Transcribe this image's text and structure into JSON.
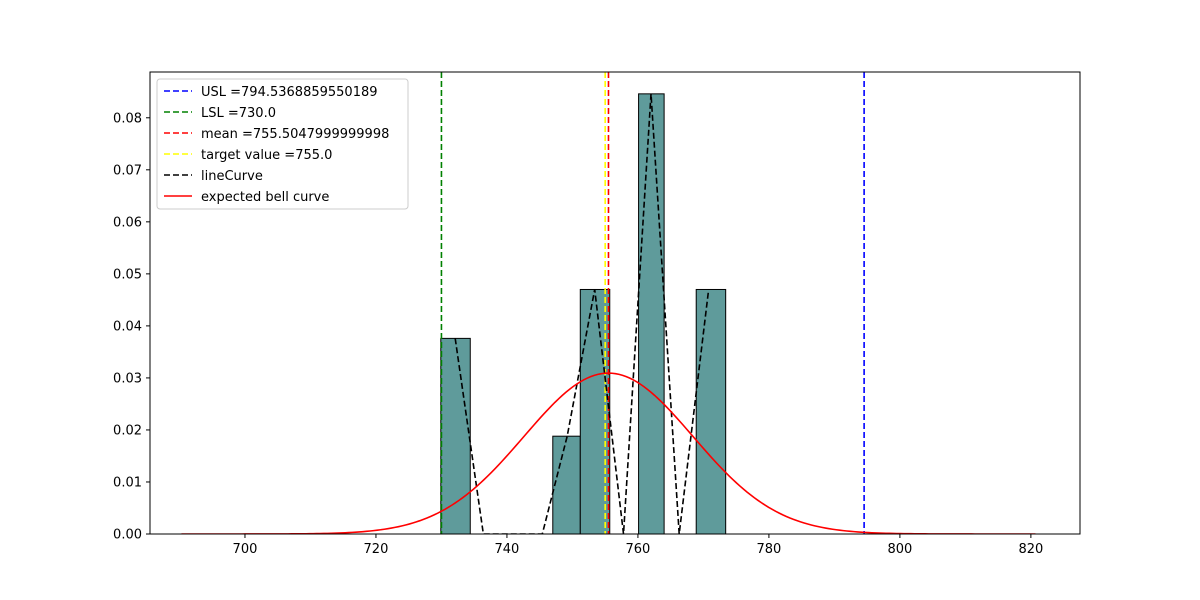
{
  "chart_data": {
    "type": "bar",
    "title": "",
    "xlabel": "",
    "ylabel": "",
    "xlim": [
      685.5,
      827.5
    ],
    "ylim": [
      0,
      0.0888
    ],
    "xticks": [
      700,
      720,
      740,
      760,
      780,
      800,
      820
    ],
    "xtick_labels": [
      "700",
      "720",
      "740",
      "760",
      "780",
      "800",
      "820"
    ],
    "yticks": [
      0.0,
      0.01,
      0.02,
      0.03,
      0.04,
      0.05,
      0.06,
      0.07,
      0.08
    ],
    "ytick_labels": [
      "0.00",
      "0.01",
      "0.02",
      "0.03",
      "0.04",
      "0.05",
      "0.06",
      "0.07",
      "0.08"
    ],
    "grid": false,
    "legend_position": "top-left",
    "histogram": {
      "bins": [
        {
          "x0": 729.9,
          "x1": 734.4,
          "value": 0.0376
        },
        {
          "x0": 734.4,
          "x1": 738.9,
          "value": 0.0
        },
        {
          "x0": 738.9,
          "x1": 743.4,
          "value": 0.0
        },
        {
          "x0": 743.4,
          "x1": 747.0,
          "value": 0.0
        },
        {
          "x0": 747.0,
          "x1": 751.2,
          "value": 0.0188
        },
        {
          "x0": 751.2,
          "x1": 755.7,
          "value": 0.047
        },
        {
          "x0": 755.7,
          "x1": 760.1,
          "value": 0.0
        },
        {
          "x0": 760.1,
          "x1": 764.0,
          "value": 0.0846
        },
        {
          "x0": 764.0,
          "x1": 768.9,
          "value": 0.0
        },
        {
          "x0": 768.9,
          "x1": 773.4,
          "value": 0.047
        }
      ],
      "color": "#5f9b9b"
    },
    "vertical_lines": [
      {
        "label": "USL =794.5368859550189",
        "x": 794.5368859550189,
        "color": "#0000ff",
        "style": "dashed"
      },
      {
        "label": "LSL =730.0",
        "x": 730.0,
        "color": "#008000",
        "style": "dashed"
      },
      {
        "label": "mean =755.5047999999998",
        "x": 755.5047999999998,
        "color": "#ff0000",
        "style": "dashed"
      },
      {
        "label": "target value =755.0",
        "x": 755.0,
        "color": "#ffff00",
        "style": "dashed"
      }
    ],
    "series": [
      {
        "name": "lineCurve",
        "color": "#000000",
        "style": "dashed",
        "x": [
          732.1,
          736.4,
          738.9,
          741.2,
          745.4,
          749.2,
          753.4,
          757.8,
          762.0,
          766.3,
          770.8
        ],
        "y": [
          0.0376,
          0.0,
          0.0,
          0.0,
          0.0,
          0.0188,
          0.047,
          0.0,
          0.0846,
          0.0,
          0.047
        ]
      },
      {
        "name": "expected bell curve",
        "color": "#ff0000",
        "style": "solid",
        "function": "normal",
        "mean": 755.5048,
        "std": 12.9,
        "x_range": [
          690.3,
          820.7
        ]
      }
    ]
  }
}
